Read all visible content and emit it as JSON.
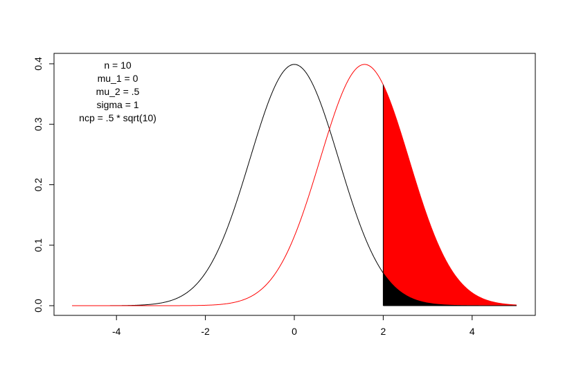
{
  "chart_data": {
    "type": "line",
    "title": "",
    "xlabel": "",
    "ylabel": "",
    "xlim": [
      -5,
      5
    ],
    "ylim": [
      0,
      0.4
    ],
    "x_ticks": [
      -4,
      -2,
      0,
      2,
      4
    ],
    "x_tick_labels": [
      "-4",
      "-2",
      "0",
      "2",
      "4"
    ],
    "y_ticks": [
      0.0,
      0.1,
      0.2,
      0.3,
      0.4
    ],
    "y_tick_labels": [
      "0.0",
      "0.1",
      "0.2",
      "0.3",
      "0.4"
    ],
    "grid": false,
    "legend": false,
    "series": [
      {
        "color": "#000000",
        "distribution": "normal",
        "mean": 0,
        "sd": 1,
        "x_from": -5,
        "x_to": 5
      },
      {
        "color": "#ff0000",
        "distribution": "normal",
        "mean": 1.58,
        "sd": 1,
        "x_from": -5,
        "x_to": 5
      }
    ],
    "shaded_regions": [
      {
        "color": "#ff0000",
        "under_series": 1,
        "x_from": 2,
        "x_to": 5
      },
      {
        "color": "#000000",
        "under_series": 0,
        "x_from": 2,
        "x_to": 5
      }
    ],
    "annotations": [
      "n = 10",
      "mu_1 = 0",
      "mu_2 = .5",
      "sigma = 1",
      "ncp = .5 * sqrt(10)"
    ]
  }
}
